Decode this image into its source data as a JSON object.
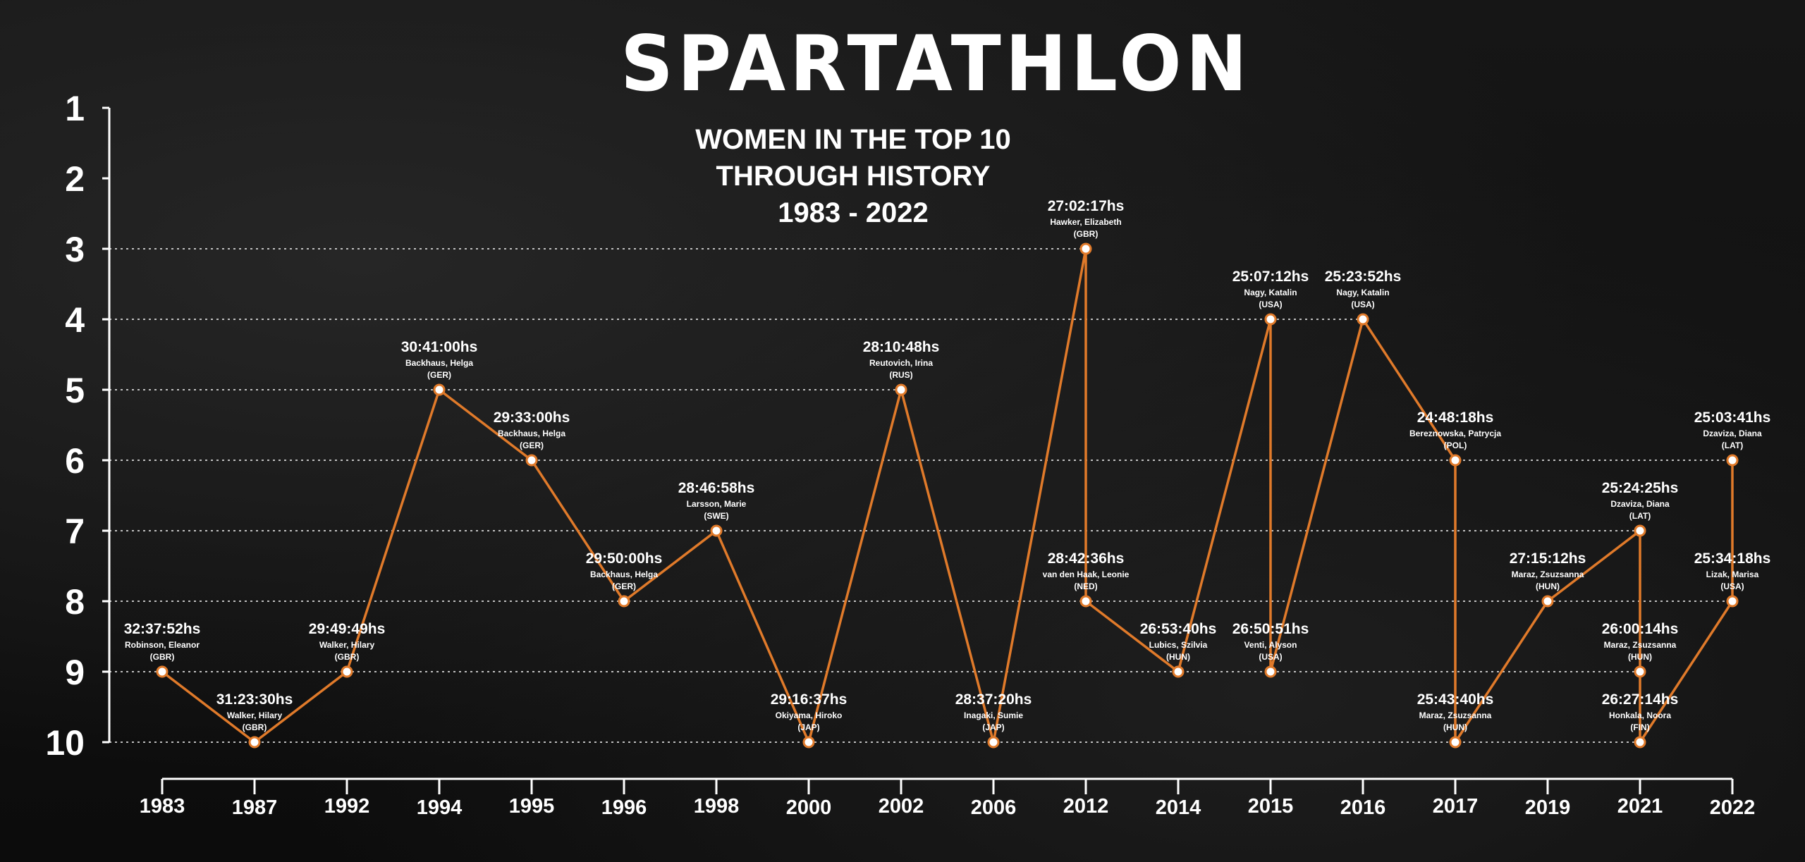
{
  "header": {
    "title": "SPARTATHLON",
    "subtitle_lines": [
      "WOMEN IN THE TOP 10",
      "THROUGH HISTORY",
      "1983 - 2022"
    ]
  },
  "colors": {
    "background": "#111111",
    "line": "#e07a2a",
    "marker_fill": "#ffffff",
    "text": "#ffffff",
    "grid": "#dddddd"
  },
  "chart_data": {
    "type": "line",
    "title": "SPARTATHLON",
    "subtitle": "WOMEN IN THE TOP 10 THROUGH HISTORY 1983 - 2022",
    "y_axis": {
      "ticks": [
        "1",
        "2",
        "3",
        "4",
        "5",
        "6",
        "7",
        "8",
        "9",
        "10"
      ],
      "range": [
        1,
        10
      ],
      "inverted": true
    },
    "x_axis": {
      "categories": [
        "1983",
        "1987",
        "1992",
        "1994",
        "1995",
        "1996",
        "1998",
        "2000",
        "2002",
        "2006",
        "2012",
        "2014",
        "2015",
        "2016",
        "2017",
        "2019",
        "2021",
        "2022"
      ]
    },
    "grid": "horizontal dotted lines at occupied positions",
    "series": [
      {
        "points": [
          {
            "year": "1983",
            "position": 9,
            "time": "32:37:52hs",
            "name": "Robinson, Eleanor",
            "country": "(GBR)"
          },
          {
            "year": "1987",
            "position": 10,
            "time": "31:23:30hs",
            "name": "Walker, Hilary",
            "country": "(GBR)"
          },
          {
            "year": "1992",
            "position": 9,
            "time": "29:49:49hs",
            "name": "Walker, Hilary",
            "country": "(GBR)"
          },
          {
            "year": "1994",
            "position": 5,
            "time": "30:41:00hs",
            "name": "Backhaus, Helga",
            "country": "(GER)"
          },
          {
            "year": "1995",
            "position": 6,
            "time": "29:33:00hs",
            "name": "Backhaus, Helga",
            "country": "(GER)"
          },
          {
            "year": "1996",
            "position": 8,
            "time": "29:50:00hs",
            "name": "Backhaus, Helga",
            "country": "(GER)"
          },
          {
            "year": "1998",
            "position": 7,
            "time": "28:46:58hs",
            "name": "Larsson, Marie",
            "country": "(SWE)"
          },
          {
            "year": "2000",
            "position": 10,
            "time": "29:16:37hs",
            "name": "Okiyama, Hiroko",
            "country": "(JAP)"
          },
          {
            "year": "2002",
            "position": 5,
            "time": "28:10:48hs",
            "name": "Reutovich, Irina",
            "country": "(RUS)"
          },
          {
            "year": "2006",
            "position": 10,
            "time": "28:37:20hs",
            "name": "Inagaki, Sumie",
            "country": "(JAP)"
          },
          {
            "year": "2012",
            "position": 3,
            "time": "27:02:17hs",
            "name": "Hawker, Elizabeth",
            "country": "(GBR)"
          },
          {
            "year": "2012",
            "position": 8,
            "time": "28:42:36hs",
            "name": "van den Haak, Leonie",
            "country": "(NED)"
          },
          {
            "year": "2014",
            "position": 9,
            "time": "26:53:40hs",
            "name": "Lubics, Szilvia",
            "country": "(HUN)"
          },
          {
            "year": "2015",
            "position": 4,
            "time": "25:07:12hs",
            "name": "Nagy, Katalin",
            "country": "(USA)"
          },
          {
            "year": "2015",
            "position": 9,
            "time": "26:50:51hs",
            "name": "Venti, Alyson",
            "country": "(USA)"
          },
          {
            "year": "2016",
            "position": 4,
            "time": "25:23:52hs",
            "name": "Nagy, Katalin",
            "country": "(USA)"
          },
          {
            "year": "2017",
            "position": 6,
            "time": "24:48:18hs",
            "name": "Bereznowska, Patrycja",
            "country": "(POL)"
          },
          {
            "year": "2017",
            "position": 10,
            "time": "25:43:40hs",
            "name": "Maraz, Zsuzsanna",
            "country": "(HUN)"
          },
          {
            "year": "2019",
            "position": 8,
            "time": "27:15:12hs",
            "name": "Maraz, Zsuzsanna",
            "country": "(HUN)"
          },
          {
            "year": "2021",
            "position": 7,
            "time": "25:24:25hs",
            "name": "Dzaviza, Diana",
            "country": "(LAT)"
          },
          {
            "year": "2021",
            "position": 9,
            "time": "26:00:14hs",
            "name": "Maraz, Zsuzsanna",
            "country": "(HUN)"
          },
          {
            "year": "2021",
            "position": 10,
            "time": "26:27:14hs",
            "name": "Honkala, Noora",
            "country": "(FIN)"
          },
          {
            "year": "2022",
            "position": 8,
            "time": "25:34:18hs",
            "name": "Lizak, Marisa",
            "country": "(USA)"
          },
          {
            "year": "2022",
            "position": 6,
            "time": "25:03:41hs",
            "name": "Dzaviza, Diana",
            "country": "(LAT)"
          }
        ]
      }
    ]
  }
}
